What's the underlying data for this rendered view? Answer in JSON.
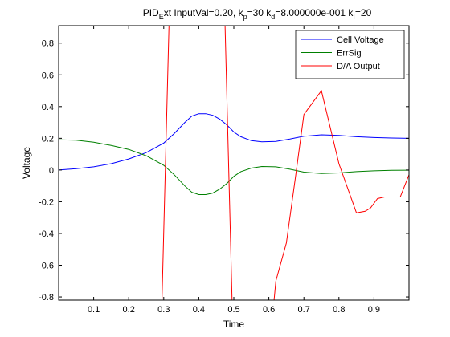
{
  "chart_data": {
    "type": "line",
    "title": {
      "base": "PID",
      "base_sub": "E",
      "input_text": "xt InputVal=0.20, k",
      "kp_sub": "p",
      "kp_text": "=30 k",
      "kd_sub": "d",
      "kd_text": "=8.000000e-001 k",
      "ki_sub": "I",
      "ki_text": "=20"
    },
    "xlabel": "Time",
    "ylabel": "Voltage",
    "xlim": [
      0,
      1
    ],
    "ylim": [
      -0.82,
      0.91
    ],
    "x_ticks": [
      0.1,
      0.2,
      0.3,
      0.4,
      0.5,
      0.6,
      0.7,
      0.8,
      0.9
    ],
    "x_tick_labels": [
      "0.1",
      "0.2",
      "0.3",
      "0.4",
      "0.5",
      "0.6",
      "0.7",
      "0.8",
      "0.9"
    ],
    "y_ticks": [
      -0.8,
      -0.6,
      -0.4,
      -0.2,
      0,
      0.2,
      0.4,
      0.6,
      0.8
    ],
    "y_tick_labels": [
      "-0.8",
      "-0.6",
      "-0.4",
      "-0.2",
      "0",
      "0.2",
      "0.4",
      "0.6",
      "0.8"
    ],
    "grid": false,
    "legend_position": "top-right",
    "series": [
      {
        "name": "Cell Voltage",
        "color": "#0000ff",
        "x": [
          0,
          0.05,
          0.1,
          0.15,
          0.2,
          0.25,
          0.3,
          0.33,
          0.36,
          0.38,
          0.4,
          0.42,
          0.44,
          0.46,
          0.48,
          0.5,
          0.52,
          0.55,
          0.58,
          0.62,
          0.66,
          0.7,
          0.75,
          0.8,
          0.85,
          0.9,
          0.95,
          1.0
        ],
        "y": [
          0.0,
          0.008,
          0.02,
          0.04,
          0.07,
          0.11,
          0.17,
          0.23,
          0.3,
          0.34,
          0.355,
          0.355,
          0.345,
          0.32,
          0.285,
          0.24,
          0.21,
          0.185,
          0.178,
          0.18,
          0.195,
          0.213,
          0.222,
          0.218,
          0.21,
          0.205,
          0.202,
          0.2
        ]
      },
      {
        "name": "ErrSig",
        "color": "#008000",
        "x": [
          0,
          0.05,
          0.1,
          0.15,
          0.2,
          0.25,
          0.3,
          0.33,
          0.36,
          0.38,
          0.4,
          0.42,
          0.44,
          0.46,
          0.48,
          0.5,
          0.52,
          0.55,
          0.58,
          0.62,
          0.66,
          0.7,
          0.75,
          0.8,
          0.85,
          0.9,
          0.95,
          1.0
        ],
        "y": [
          0.19,
          0.188,
          0.175,
          0.155,
          0.13,
          0.09,
          0.03,
          -0.03,
          -0.1,
          -0.14,
          -0.155,
          -0.155,
          -0.145,
          -0.12,
          -0.085,
          -0.04,
          -0.01,
          0.012,
          0.022,
          0.02,
          0.005,
          -0.013,
          -0.022,
          -0.018,
          -0.01,
          -0.005,
          -0.002,
          -0.001
        ]
      },
      {
        "name": "D/A Output",
        "color": "#ff0000",
        "x": [
          0.295,
          0.315,
          0.335,
          0.475,
          0.495,
          0.615,
          0.62,
          0.65,
          0.675,
          0.7,
          0.75,
          0.8,
          0.85,
          0.875,
          0.89,
          0.91,
          0.93,
          0.975,
          1.0
        ],
        "y": [
          -0.82,
          0.91,
          0.91,
          0.91,
          -0.82,
          -0.82,
          -0.7,
          -0.46,
          -0.06,
          0.35,
          0.5,
          0.04,
          -0.27,
          -0.26,
          -0.24,
          -0.18,
          -0.17,
          -0.17,
          -0.03
        ]
      }
    ]
  }
}
